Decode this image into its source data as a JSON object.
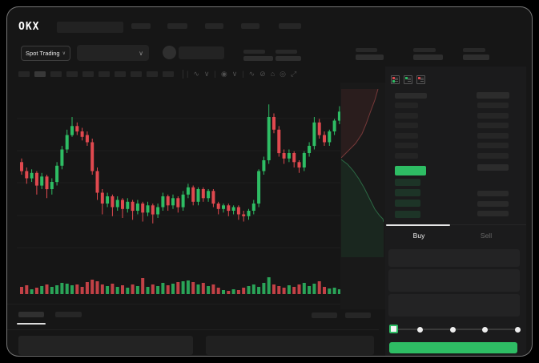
{
  "app": {
    "brand": "OKX"
  },
  "subheader": {
    "market_selector_label": "Spot Trading",
    "selector_caret": "∨",
    "pair_select_caret": "∨"
  },
  "chart_toolbar": {
    "timeframe_count": 10,
    "active_timeframe_index": 1,
    "icons": [
      {
        "name": "divider",
        "glyph": "|"
      },
      {
        "name": "candle-type-icon",
        "glyph": "∿"
      },
      {
        "name": "candle-type-caret-icon",
        "glyph": "∨"
      },
      {
        "name": "divider",
        "glyph": "|"
      },
      {
        "name": "indicators-icon",
        "glyph": "◉"
      },
      {
        "name": "indicators-caret-icon",
        "glyph": "∨"
      },
      {
        "name": "divider",
        "glyph": "|"
      },
      {
        "name": "line-tool-icon",
        "glyph": "∿"
      },
      {
        "name": "draw-tool-icon",
        "glyph": "⊘"
      },
      {
        "name": "snapshot-icon",
        "glyph": "⌂"
      },
      {
        "name": "chart-settings-icon",
        "glyph": "◎"
      },
      {
        "name": "fullscreen-icon",
        "glyph": "⤢"
      }
    ]
  },
  "order_book": {
    "view_modes": [
      "book-all",
      "book-bids",
      "book-asks"
    ],
    "ask_row_count": 6,
    "bid_row_count": 4,
    "right_col_row_count": 6,
    "right_col_lower_row_count": 3
  },
  "trade_panel": {
    "buy_tab_label": "Buy",
    "sell_tab_label": "Sell",
    "field_count": 3,
    "slider_stop_count": 5,
    "slider_active_index": 0
  },
  "colors": {
    "green": "#2ebd64",
    "red": "#e0494f",
    "bid_row_green": "rgba(46,189,100,0.16)",
    "depth_ask_fill": "rgba(200,70,70,0.10)",
    "depth_ask_stroke": "rgba(225,95,95,0.45)",
    "depth_bid_fill": "rgba(46,189,100,0.09)",
    "depth_bid_stroke": "rgba(70,205,125,0.42)",
    "frame_bg": "#161616",
    "panel_bg": "#1b1b1c",
    "skeleton": "#262626",
    "active_tab_text": "#f0f0f0",
    "inactive_tab_text": "#6a6a6a"
  },
  "chart_data": {
    "type": "candlestick",
    "title": "",
    "xlabel": "",
    "ylabel": "",
    "axes_labeled": false,
    "grid": "faint-horizontal",
    "price_scale": [
      0,
      100
    ],
    "gridlines_y_local": [
      39,
      79,
      119,
      160,
      200
    ],
    "candles_ohlc": [
      [
        63,
        65,
        56,
        58
      ],
      [
        58,
        60,
        51,
        54
      ],
      [
        54,
        59,
        52,
        57
      ],
      [
        57,
        58,
        45,
        50
      ],
      [
        50,
        57,
        48,
        55
      ],
      [
        55,
        56,
        43,
        48
      ],
      [
        48,
        54,
        45,
        52
      ],
      [
        52,
        63,
        50,
        61
      ],
      [
        61,
        72,
        59,
        70
      ],
      [
        70,
        81,
        68,
        78
      ],
      [
        78,
        88,
        77,
        83
      ],
      [
        83,
        85,
        78,
        80
      ],
      [
        80,
        82,
        75,
        77
      ],
      [
        78,
        80,
        72,
        74
      ],
      [
        74,
        76,
        56,
        58
      ],
      [
        58,
        60,
        42,
        46
      ],
      [
        46,
        48,
        34,
        40
      ],
      [
        40,
        46,
        38,
        44
      ],
      [
        44,
        45,
        33,
        38
      ],
      [
        38,
        44,
        36,
        42
      ],
      [
        42,
        43,
        32,
        37
      ],
      [
        37,
        43,
        35,
        41
      ],
      [
        41,
        42,
        31,
        36
      ],
      [
        36,
        42,
        34,
        40
      ],
      [
        40,
        41,
        30,
        35
      ],
      [
        35,
        41,
        33,
        39
      ],
      [
        39,
        40,
        29,
        34
      ],
      [
        34,
        40,
        32,
        38
      ],
      [
        38,
        46,
        36,
        44
      ],
      [
        44,
        45,
        36,
        39
      ],
      [
        39,
        45,
        37,
        43
      ],
      [
        43,
        44,
        35,
        38
      ],
      [
        38,
        47,
        36,
        45
      ],
      [
        45,
        51,
        43,
        49
      ],
      [
        49,
        50,
        39,
        41
      ],
      [
        41,
        49,
        39,
        48
      ],
      [
        48,
        49,
        41,
        43
      ],
      [
        43,
        48,
        41,
        47
      ],
      [
        47,
        48,
        38,
        40
      ],
      [
        40,
        41,
        34,
        37
      ],
      [
        37,
        40,
        35,
        39
      ],
      [
        39,
        40,
        33,
        36
      ],
      [
        36,
        39,
        34,
        38
      ],
      [
        38,
        39,
        31,
        34
      ],
      [
        34,
        36,
        30,
        33
      ],
      [
        33,
        37,
        31,
        36
      ],
      [
        36,
        42,
        34,
        40
      ],
      [
        40,
        59,
        38,
        58
      ],
      [
        58,
        66,
        56,
        64
      ],
      [
        64,
        95,
        62,
        88
      ],
      [
        88,
        90,
        79,
        81
      ],
      [
        81,
        83,
        66,
        68
      ],
      [
        68,
        70,
        62,
        65
      ],
      [
        65,
        70,
        63,
        68
      ],
      [
        68,
        69,
        60,
        63
      ],
      [
        63,
        64,
        57,
        60
      ],
      [
        60,
        69,
        58,
        68
      ],
      [
        68,
        74,
        66,
        72
      ],
      [
        72,
        88,
        70,
        85
      ],
      [
        85,
        87,
        76,
        78
      ],
      [
        78,
        80,
        72,
        74
      ],
      [
        74,
        81,
        72,
        80
      ],
      [
        80,
        87,
        78,
        86
      ],
      [
        86,
        94,
        84,
        91
      ],
      [
        91,
        93,
        82,
        84
      ]
    ],
    "volumes": [
      9,
      11,
      6,
      8,
      10,
      12,
      9,
      11,
      14,
      13,
      11,
      12,
      9,
      15,
      18,
      16,
      12,
      10,
      13,
      9,
      11,
      8,
      12,
      10,
      20,
      9,
      12,
      10,
      14,
      11,
      13,
      15,
      16,
      17,
      15,
      12,
      14,
      10,
      12,
      8,
      5,
      4,
      6,
      5,
      8,
      10,
      12,
      9,
      14,
      21,
      12,
      10,
      8,
      11,
      9,
      12,
      14,
      10,
      13,
      16,
      9,
      7,
      8,
      6,
      5
    ],
    "depth": {
      "type": "area",
      "orientation": "vertical",
      "asks_boundary": "46,0 42,14 36,30 31,44 26,56 18,68 8,78 2,84 0,86",
      "bids_boundary": "0,88 8,94 15,102 22,112 29,124 35,136 42,150 48,158 52,162 53,166"
    }
  }
}
